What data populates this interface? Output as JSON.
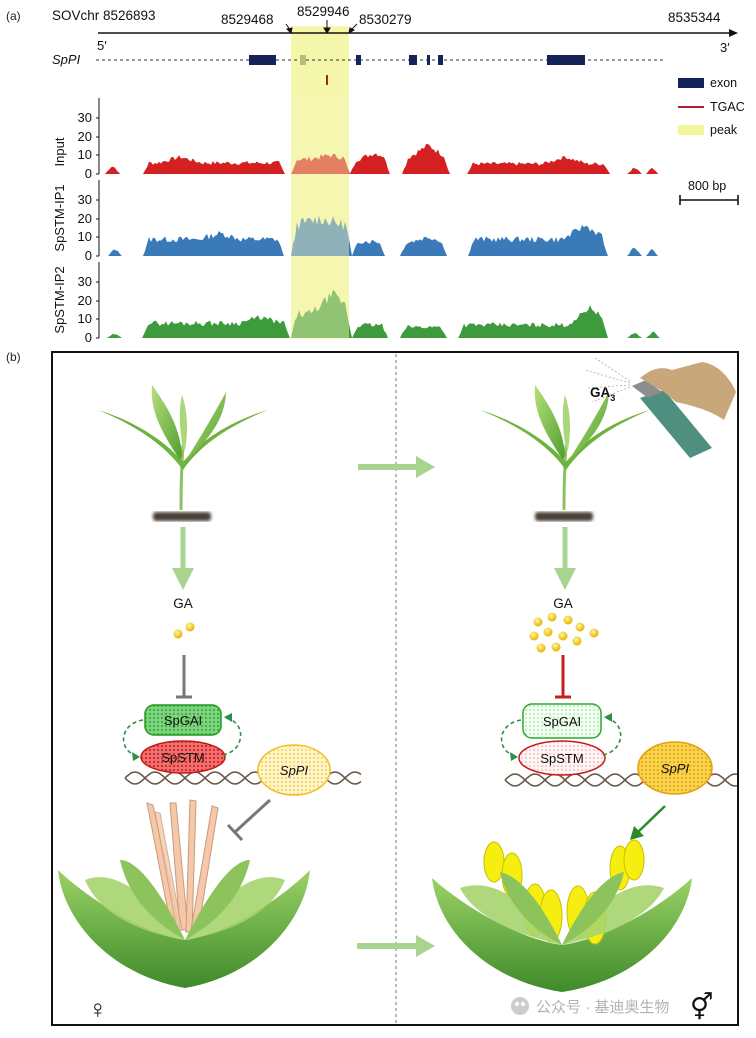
{
  "panel_a": {
    "label": "(a)",
    "chrom_label": "SOVchr 8526893",
    "coord_1": "8529468",
    "coord_2": "8529946",
    "coord_3": "8530279",
    "coord_end": "8535344",
    "five_prime": "5′",
    "three_prime": "3′",
    "gene": "SpPI",
    "legend": {
      "exon": "exon",
      "tgac": "TGAC",
      "peak": "peak"
    },
    "scale_bar": "800 bp",
    "tracks": [
      {
        "name": "Input",
        "color": "#d42020",
        "ticks": [
          "30",
          "20",
          "10",
          "0"
        ]
      },
      {
        "name": "SpSTM-IP1",
        "color": "#3a7ab8",
        "ticks": [
          "30",
          "20",
          "10",
          "0"
        ]
      },
      {
        "name": "SpSTM-IP2",
        "color": "#3d9a3d",
        "ticks": [
          "30",
          "20",
          "10",
          "0"
        ]
      }
    ],
    "colors": {
      "exon": "#14235a",
      "tgac": "#b01c2e",
      "peak": "#f2f59a"
    }
  },
  "panel_b": {
    "label": "(b)",
    "left": {
      "ga": "GA",
      "gai": "SpGAI",
      "stm": "SpSTM",
      "pi": "SpPI",
      "sex_symbol": "♀"
    },
    "right": {
      "ga": "GA",
      "ga3_main": "GA",
      "ga3_sub": "3",
      "gai": "SpGAI",
      "stm": "SpSTM",
      "pi": "SpPI",
      "sex_symbol": "⚥"
    },
    "watermark": "公众号 · 基迪奥生物"
  }
}
